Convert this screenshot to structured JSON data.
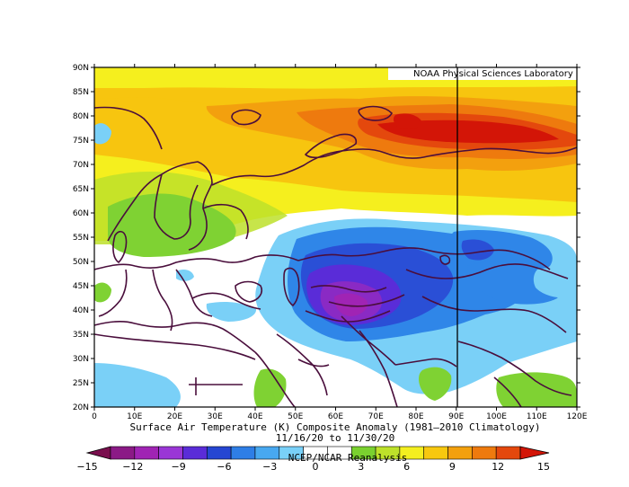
{
  "map": {
    "title": "Surface Air Temperature (K) Composite Anomaly (1981–2010 Climatology)",
    "date_range": "11/16/20  to 11/30/20",
    "credit": "NOAA Physical Sciences Laboratory",
    "source": "NCEP/NCAR Reanalysis",
    "lat_labels": [
      "90N",
      "85N",
      "80N",
      "75N",
      "70N",
      "65N",
      "60N",
      "55N",
      "50N",
      "45N",
      "40N",
      "35N",
      "30N",
      "25N",
      "20N"
    ],
    "lon_labels": [
      "0",
      "10E",
      "20E",
      "30E",
      "40E",
      "50E",
      "60E",
      "70E",
      "80E",
      "90E",
      "100E",
      "110E",
      "120E"
    ]
  },
  "colorbar": {
    "ticks": [
      "−15",
      "−12",
      "−9",
      "−6",
      "−3",
      "0",
      "3",
      "6",
      "9",
      "12",
      "15"
    ],
    "colors": [
      "#7a0f4e",
      "#8b1a86",
      "#a024b4",
      "#9a36d6",
      "#5a2cd8",
      "#2546d2",
      "#2e7ee6",
      "#48a8f0",
      "#79d0f8",
      "#ffffff",
      "#ffffff",
      "#7ad12f",
      "#bde12a",
      "#f4ef1f",
      "#f7c80f",
      "#f3a00e",
      "#ee7a0e",
      "#e4480d",
      "#d31507"
    ]
  },
  "colors": {
    "strong_warm": "#d6190b",
    "warm": "#f3820e",
    "mild_warm": "#f7c50f",
    "yellow": "#f5ef1e",
    "green": "#7fd233",
    "neutral": "#ffffff",
    "cool": "#7ad0f7",
    "cold": "#2f86e8",
    "colder": "#2a4fd6",
    "coldest": "#8a2ac4",
    "boundary": "#4a0e3c"
  }
}
